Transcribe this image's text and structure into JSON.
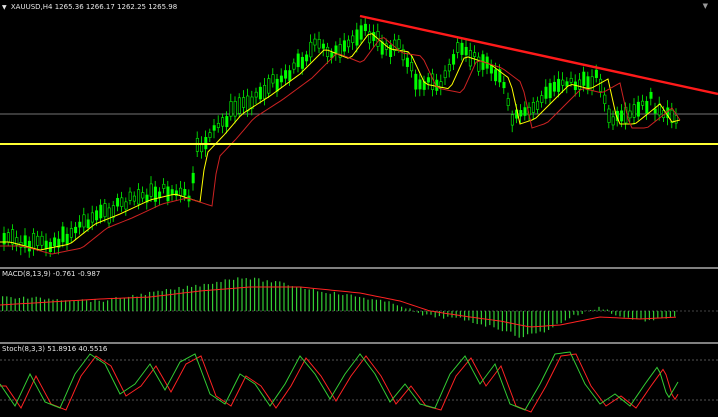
{
  "main": {
    "symbol_label": "XAUUSD,H4",
    "ohlc_label": "1265.36 1266.17 1262.25 1265.98",
    "menu_arrow_icon": "triangle-down-icon",
    "corner_icon": "triangle-down-icon"
  },
  "macd": {
    "label": "MACD(8,13,9) -0.761 -0.987"
  },
  "stoch": {
    "label": "Stoch(8,3,3) 51.8916 40.5516"
  },
  "colors": {
    "background": "#000000",
    "bull": "#00ff00",
    "wick": "#00ff00",
    "ma_fast": "#ffff00",
    "ma_slow": "#cc2222",
    "trendline": "#ff1a1a",
    "support": "#ffff33",
    "hline": "#9a9a9a",
    "macd_hist": "#33cc33",
    "macd_signal": "#ff2222",
    "stoch_main": "#33cc33",
    "stoch_signal": "#ff2222",
    "separator": "#808080"
  }
}
